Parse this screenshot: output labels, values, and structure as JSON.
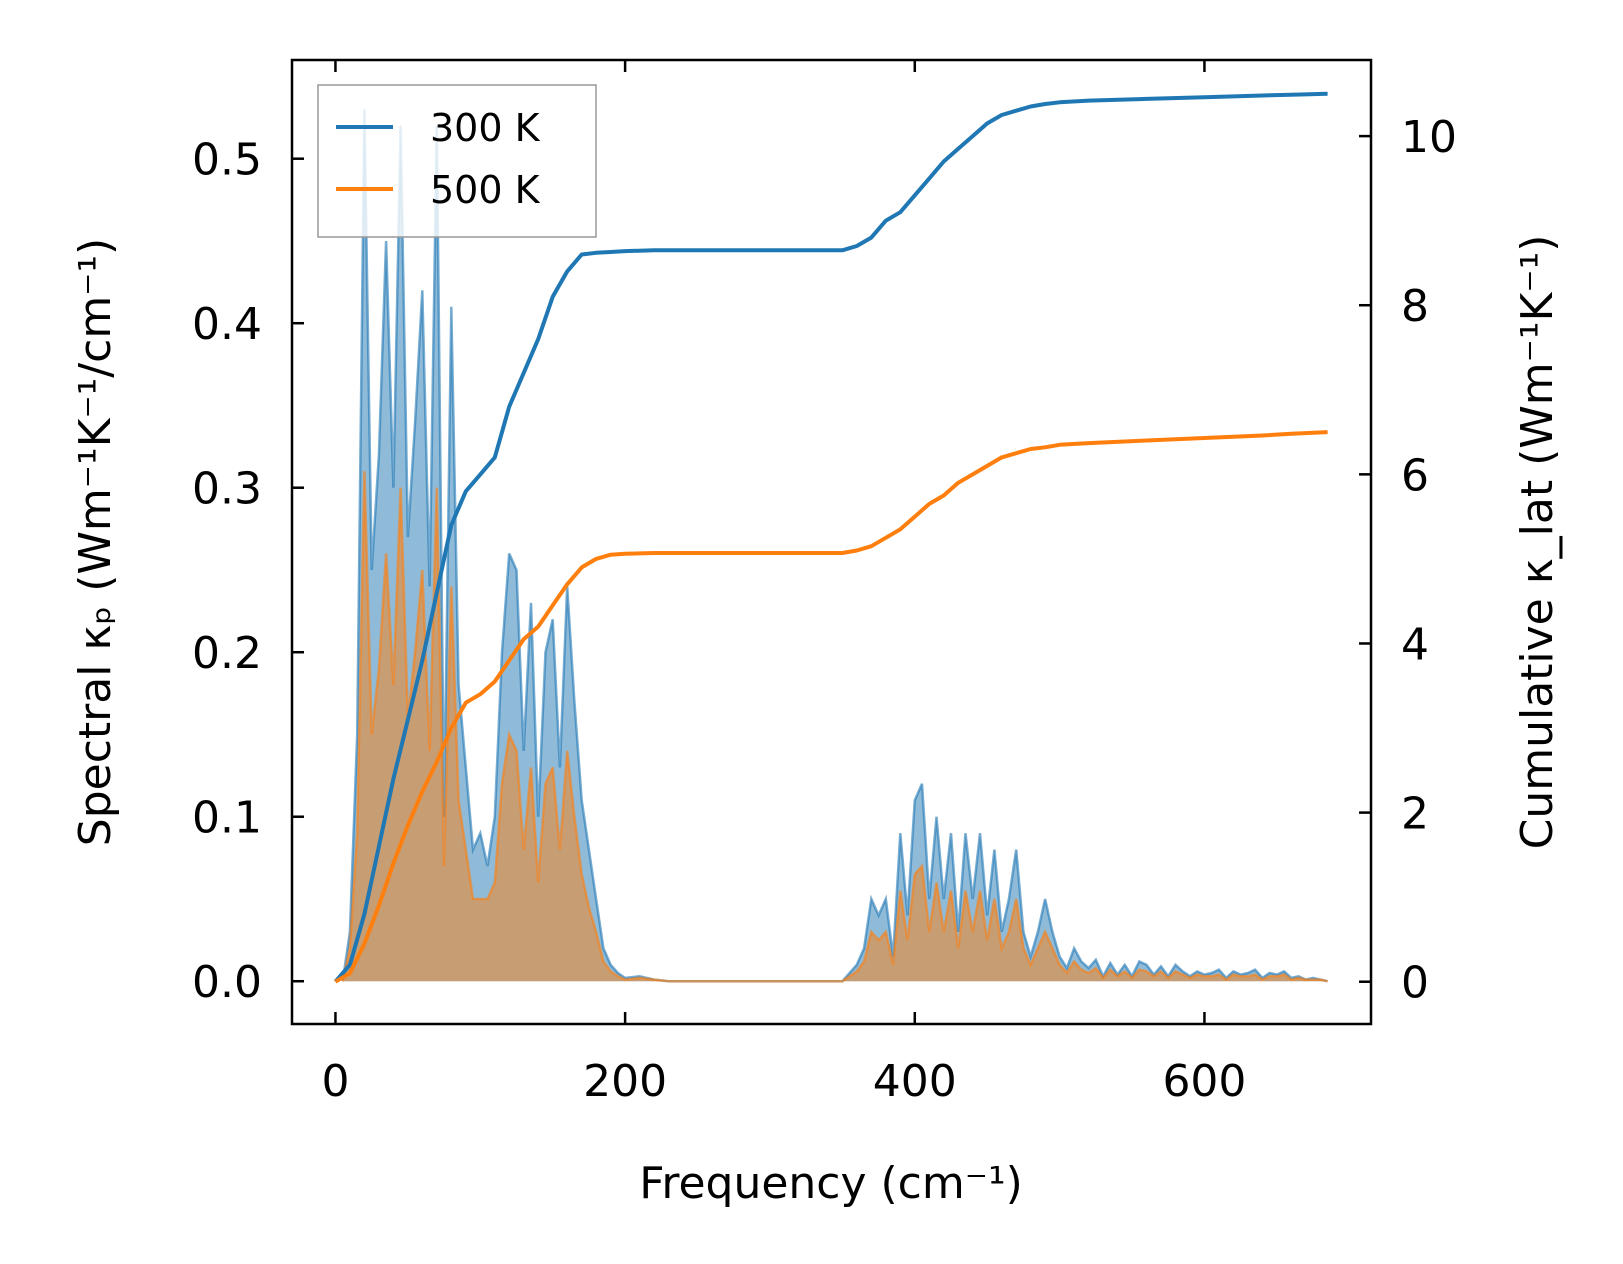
{
  "chart_data": {
    "type": "line",
    "title": "",
    "xlabel": "Frequency (cm⁻¹)",
    "ylabel_left": "Spectral κₚ (Wm⁻¹K⁻¹/cm⁻¹)",
    "ylabel_right": "Cumulative κ_lat (Wm⁻¹K⁻¹)",
    "xlim": [
      -30,
      715
    ],
    "ylim_left": [
      -0.026,
      0.56
    ],
    "ylim_right": [
      -0.5,
      10.9
    ],
    "xticks": [
      0,
      200,
      400,
      600
    ],
    "xtick_labels": [
      "0",
      "200",
      "400",
      "600"
    ],
    "yticks_left": [
      0.0,
      0.1,
      0.2,
      0.3,
      0.4,
      0.5
    ],
    "ytick_labels_left": [
      "0.0",
      "0.1",
      "0.2",
      "0.3",
      "0.4",
      "0.5"
    ],
    "yticks_right": [
      0,
      2,
      4,
      6,
      8,
      10
    ],
    "ytick_labels_right": [
      "0",
      "2",
      "4",
      "6",
      "8",
      "10"
    ],
    "legend_position": "top-left",
    "grid": false,
    "colors": {
      "s300": "#1f77b4",
      "s500": "#ff7f0e"
    },
    "series": [
      {
        "name": "300 K",
        "color": "#1f77b4",
        "spectral": {
          "x": [
            5,
            10,
            15,
            20,
            25,
            30,
            35,
            40,
            45,
            50,
            55,
            60,
            65,
            70,
            75,
            80,
            85,
            90,
            95,
            100,
            105,
            110,
            115,
            120,
            125,
            130,
            135,
            140,
            145,
            150,
            155,
            160,
            165,
            170,
            175,
            180,
            185,
            190,
            195,
            200,
            210,
            220,
            230,
            350,
            355,
            360,
            365,
            370,
            375,
            380,
            385,
            390,
            395,
            400,
            405,
            410,
            415,
            420,
            425,
            430,
            435,
            440,
            445,
            450,
            455,
            460,
            465,
            470,
            475,
            480,
            485,
            490,
            495,
            500,
            505,
            510,
            515,
            520,
            525,
            530,
            535,
            540,
            545,
            550,
            555,
            560,
            565,
            570,
            575,
            580,
            585,
            590,
            595,
            600,
            605,
            610,
            615,
            620,
            625,
            630,
            635,
            640,
            645,
            650,
            655,
            660,
            665,
            670,
            675,
            680,
            685
          ],
          "y": [
            0,
            0.03,
            0.15,
            0.53,
            0.25,
            0.32,
            0.45,
            0.3,
            0.52,
            0.27,
            0.34,
            0.42,
            0.24,
            0.52,
            0.1,
            0.41,
            0.18,
            0.13,
            0.08,
            0.09,
            0.07,
            0.1,
            0.2,
            0.26,
            0.25,
            0.14,
            0.23,
            0.1,
            0.2,
            0.22,
            0.13,
            0.24,
            0.17,
            0.11,
            0.08,
            0.05,
            0.02,
            0.01,
            0.005,
            0.002,
            0.003,
            0.001,
            0,
            0,
            0.005,
            0.01,
            0.02,
            0.05,
            0.04,
            0.05,
            0.015,
            0.09,
            0.04,
            0.11,
            0.12,
            0.05,
            0.1,
            0.05,
            0.09,
            0.03,
            0.09,
            0.05,
            0.09,
            0.04,
            0.08,
            0.03,
            0.05,
            0.08,
            0.03,
            0.015,
            0.03,
            0.05,
            0.03,
            0.015,
            0.008,
            0.02,
            0.012,
            0.008,
            0.013,
            0.003,
            0.011,
            0.004,
            0.01,
            0.003,
            0.012,
            0.01,
            0.004,
            0.009,
            0.003,
            0.01,
            0.006,
            0.003,
            0.006,
            0.004,
            0.005,
            0.007,
            0.002,
            0.006,
            0.004,
            0.005,
            0.007,
            0.002,
            0.005,
            0.004,
            0.006,
            0.002,
            0.003,
            0.001,
            0.002,
            0.001,
            0
          ]
        },
        "cumulative": {
          "x": [
            0,
            10,
            20,
            30,
            40,
            50,
            60,
            70,
            80,
            90,
            100,
            110,
            120,
            130,
            140,
            150,
            160,
            170,
            180,
            190,
            200,
            220,
            350,
            360,
            370,
            380,
            390,
            400,
            410,
            420,
            430,
            440,
            450,
            460,
            470,
            480,
            490,
            500,
            520,
            560,
            600,
            640,
            660,
            685
          ],
          "y": [
            0,
            0.2,
            0.8,
            1.6,
            2.4,
            3.1,
            3.8,
            4.6,
            5.4,
            5.8,
            6.0,
            6.2,
            6.8,
            7.2,
            7.6,
            8.1,
            8.4,
            8.6,
            8.62,
            8.63,
            8.64,
            8.65,
            8.65,
            8.7,
            8.8,
            9.0,
            9.1,
            9.3,
            9.5,
            9.7,
            9.85,
            10.0,
            10.15,
            10.25,
            10.3,
            10.35,
            10.38,
            10.4,
            10.42,
            10.44,
            10.46,
            10.48,
            10.49,
            10.5
          ]
        }
      },
      {
        "name": "500 K",
        "color": "#ff7f0e",
        "spectral": {
          "x": [
            5,
            10,
            15,
            20,
            25,
            30,
            35,
            40,
            45,
            50,
            55,
            60,
            65,
            70,
            75,
            80,
            85,
            90,
            95,
            100,
            105,
            110,
            115,
            120,
            125,
            130,
            135,
            140,
            145,
            150,
            155,
            160,
            165,
            170,
            175,
            180,
            185,
            190,
            195,
            200,
            210,
            220,
            230,
            350,
            355,
            360,
            365,
            370,
            375,
            380,
            385,
            390,
            395,
            400,
            405,
            410,
            415,
            420,
            425,
            430,
            435,
            440,
            445,
            450,
            455,
            460,
            465,
            470,
            475,
            480,
            485,
            490,
            495,
            500,
            505,
            510,
            515,
            520,
            525,
            530,
            535,
            540,
            545,
            550,
            555,
            560,
            565,
            570,
            575,
            580,
            585,
            590,
            595,
            600,
            605,
            610,
            615,
            620,
            625,
            630,
            635,
            640,
            645,
            650,
            655,
            660,
            665,
            670,
            675,
            680,
            685
          ],
          "y": [
            0,
            0.02,
            0.09,
            0.31,
            0.15,
            0.19,
            0.26,
            0.18,
            0.3,
            0.16,
            0.2,
            0.25,
            0.14,
            0.3,
            0.07,
            0.24,
            0.11,
            0.08,
            0.05,
            0.05,
            0.05,
            0.06,
            0.12,
            0.15,
            0.14,
            0.08,
            0.13,
            0.06,
            0.12,
            0.13,
            0.08,
            0.14,
            0.1,
            0.065,
            0.045,
            0.03,
            0.012,
            0.006,
            0.003,
            0.001,
            0.002,
            0.001,
            0,
            0,
            0.003,
            0.006,
            0.012,
            0.03,
            0.025,
            0.03,
            0.01,
            0.055,
            0.025,
            0.065,
            0.07,
            0.03,
            0.06,
            0.03,
            0.055,
            0.02,
            0.055,
            0.03,
            0.055,
            0.025,
            0.05,
            0.02,
            0.03,
            0.05,
            0.02,
            0.01,
            0.02,
            0.03,
            0.02,
            0.01,
            0.005,
            0.012,
            0.007,
            0.005,
            0.008,
            0.002,
            0.007,
            0.003,
            0.006,
            0.002,
            0.007,
            0.006,
            0.003,
            0.006,
            0.002,
            0.006,
            0.004,
            0.002,
            0.004,
            0.003,
            0.003,
            0.004,
            0.001,
            0.004,
            0.003,
            0.003,
            0.004,
            0.001,
            0.003,
            0.003,
            0.004,
            0.001,
            0.002,
            0.001,
            0.001,
            0.001,
            0
          ]
        },
        "cumulative": {
          "x": [
            0,
            10,
            20,
            30,
            40,
            50,
            60,
            70,
            80,
            90,
            100,
            110,
            120,
            130,
            140,
            150,
            160,
            170,
            180,
            190,
            200,
            220,
            350,
            360,
            370,
            380,
            390,
            400,
            410,
            420,
            430,
            440,
            450,
            460,
            470,
            480,
            490,
            500,
            520,
            560,
            600,
            640,
            660,
            685
          ],
          "y": [
            0,
            0.1,
            0.45,
            0.9,
            1.4,
            1.85,
            2.25,
            2.6,
            3.0,
            3.3,
            3.4,
            3.55,
            3.8,
            4.05,
            4.2,
            4.45,
            4.7,
            4.9,
            5.0,
            5.05,
            5.06,
            5.07,
            5.07,
            5.1,
            5.15,
            5.25,
            5.35,
            5.5,
            5.65,
            5.75,
            5.9,
            6.0,
            6.1,
            6.2,
            6.25,
            6.3,
            6.32,
            6.35,
            6.37,
            6.4,
            6.43,
            6.46,
            6.48,
            6.5
          ]
        }
      }
    ]
  }
}
